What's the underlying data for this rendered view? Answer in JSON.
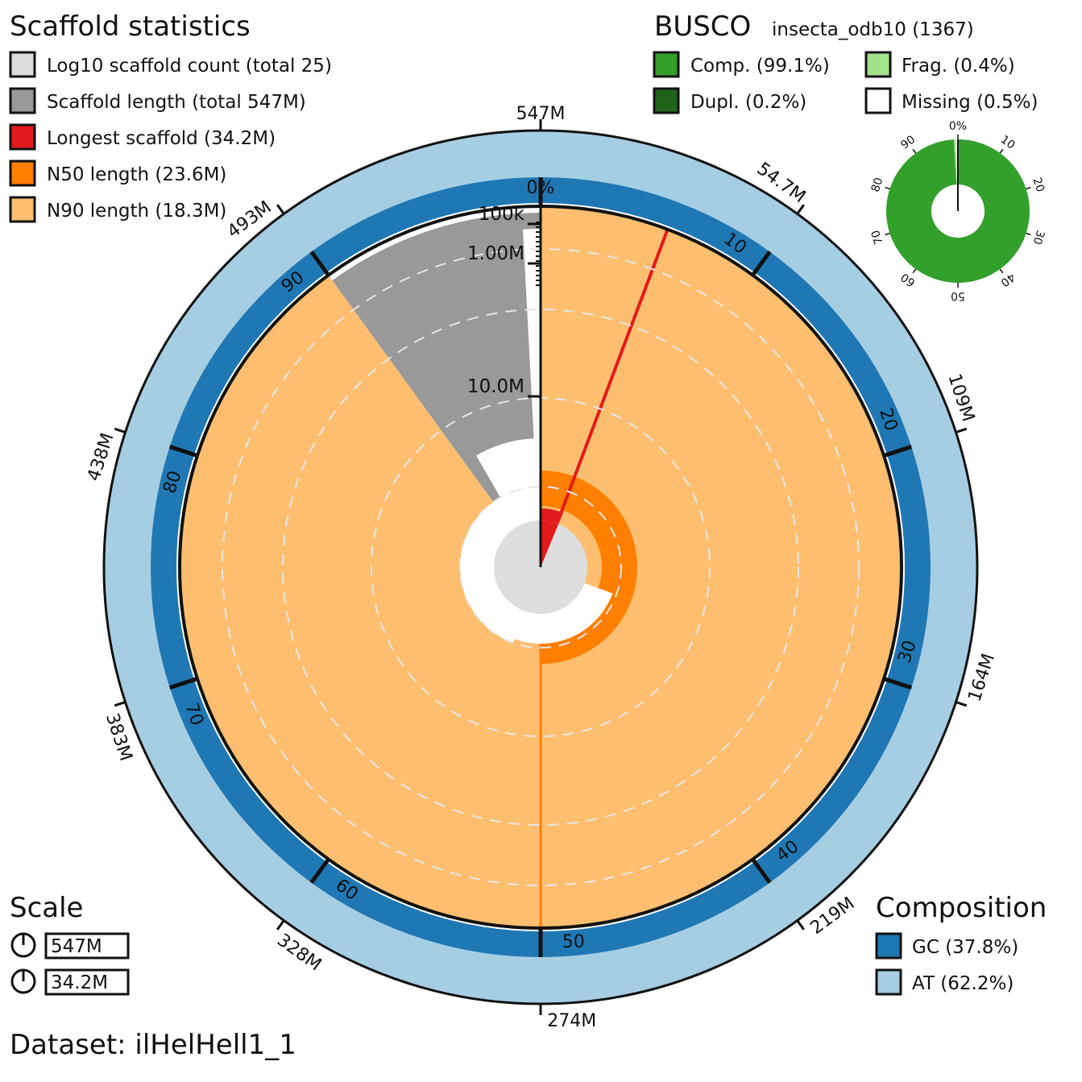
{
  "chart_data": {
    "type": "snail",
    "dataset_label": "Dataset: ilHelHell1_1",
    "scaffold_stats": {
      "heading": "Scaffold statistics",
      "legend": [
        {
          "label": "Log10 scaffold count (total 25)",
          "color": "#dddddd"
        },
        {
          "label": "Scaffold length (total 547M)",
          "color": "#999999"
        },
        {
          "label": "Longest scaffold (34.2M)",
          "color": "#e31a1c"
        },
        {
          "label": "N50 length (23.6M)",
          "color": "#ff7f00"
        },
        {
          "label": "N90 length (18.3M)",
          "color": "#fdbf6f"
        }
      ],
      "total_length_mb": 547,
      "longest_scaffold_mb": 34.2,
      "n50_mb": 23.6,
      "n90_mb": 18.3,
      "scaffold_count": 25,
      "n50_boundary_percent": 50,
      "n90_boundary_percent": 90,
      "longest_scaffold_share_percent": 6.25
    },
    "percent_ticks": [
      "0%",
      "10",
      "20",
      "30",
      "40",
      "50",
      "60",
      "70",
      "80",
      "90"
    ],
    "length_ticks": [
      "547M",
      "54.7M",
      "109M",
      "164M",
      "219M",
      "274M",
      "328M",
      "383M",
      "438M",
      "493M"
    ],
    "radial_axis_labels": [
      "100k",
      "1.00M",
      "10.0M"
    ],
    "busco": {
      "heading": "BUSCO",
      "lineage": "insecta_odb10 (1367)",
      "legend": [
        {
          "label": "Comp. (99.1%)",
          "color": "#33a02c"
        },
        {
          "label": "Dupl. (0.2%)",
          "color": "#20641c"
        },
        {
          "label": "Frag. (0.4%)",
          "color": "#a3e28b"
        },
        {
          "label": "Missing (0.5%)",
          "color": "#ffffff"
        }
      ],
      "complete_percent": 99.1,
      "duplicated_percent": 0.2,
      "fragmented_percent": 0.4,
      "missing_percent": 0.5,
      "ticks": [
        "0%",
        "10",
        "20",
        "30",
        "40",
        "50",
        "60",
        "70",
        "80",
        "90"
      ]
    },
    "scale": {
      "heading": "Scale",
      "items": [
        "547M",
        "34.2M"
      ]
    },
    "composition": {
      "heading": "Composition",
      "legend": [
        {
          "label": "GC (37.8%)",
          "color": "#1f78b4"
        },
        {
          "label": "AT (62.2%)",
          "color": "#a6cee3"
        }
      ],
      "gc_percent": 37.8,
      "at_percent": 62.2
    }
  }
}
